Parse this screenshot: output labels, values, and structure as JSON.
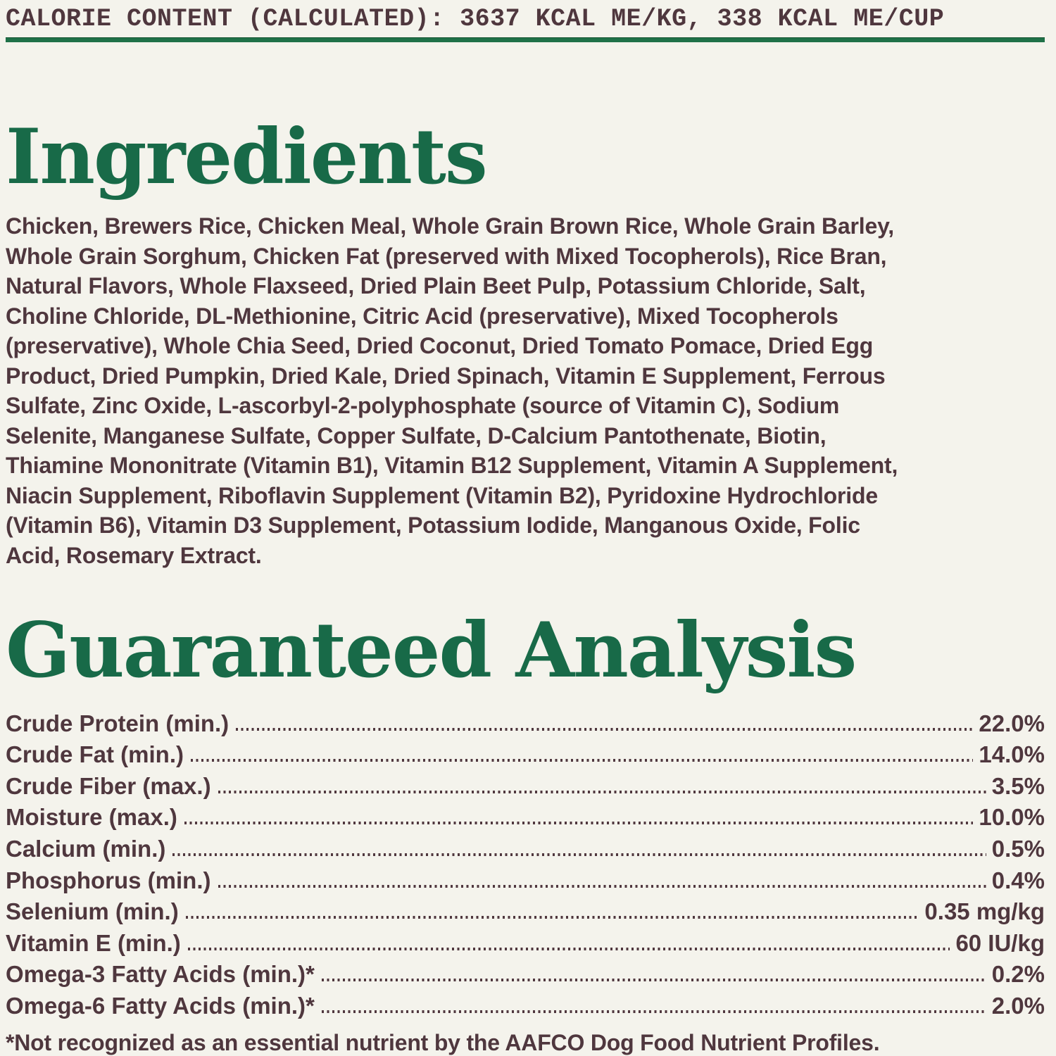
{
  "header": {
    "calorie_line": "CALORIE CONTENT (CALCULATED): 3637 KCAL ME/KG, 338 KCAL ME/CUP"
  },
  "colors": {
    "background": "#f4f3ec",
    "heading_green": "#186a48",
    "rule_green": "#1f7148",
    "text_brown": "#4f373e"
  },
  "ingredients": {
    "heading": "Ingredients",
    "lines": [
      "Chicken, Brewers Rice, Chicken Meal, Whole Grain Brown Rice, Whole Grain Barley,",
      "Whole Grain Sorghum, Chicken Fat (preserved with Mixed Tocopherols), Rice Bran,",
      "Natural Flavors, Whole Flaxseed, Dried Plain Beet Pulp, Potassium Chloride, Salt,",
      "Choline Chloride, DL-Methionine, Citric Acid (preservative), Mixed Tocopherols",
      "(preservative), Whole Chia Seed, Dried Coconut, Dried Tomato Pomace, Dried Egg",
      "Product, Dried Pumpkin, Dried Kale, Dried Spinach, Vitamin E Supplement, Ferrous",
      "Sulfate, Zinc Oxide, L-ascorbyl-2-polyphosphate (source of Vitamin C), Sodium",
      "Selenite, Manganese Sulfate, Copper Sulfate, D-Calcium Pantothenate, Biotin,",
      "Thiamine Mononitrate (Vitamin B1), Vitamin B12 Supplement, Vitamin A Supplement,",
      "Niacin Supplement, Riboflavin Supplement (Vitamin B2), Pyridoxine Hydrochloride",
      "(Vitamin B6), Vitamin D3 Supplement, Potassium Iodide, Manganous Oxide, Folic",
      "Acid, Rosemary Extract."
    ]
  },
  "analysis": {
    "heading": "Guaranteed Analysis",
    "rows": [
      {
        "label": "Crude Protein (min.)",
        "value": "22.0%"
      },
      {
        "label": "Crude Fat (min.)",
        "value": "14.0%"
      },
      {
        "label": "Crude Fiber (max.)",
        "value": "3.5%"
      },
      {
        "label": "Moisture (max.)",
        "value": "10.0%"
      },
      {
        "label": "Calcium (min.)",
        "value": "0.5%"
      },
      {
        "label": "Phosphorus (min.)",
        "value": "0.4%"
      },
      {
        "label": "Selenium (min.)",
        "value": "0.35 mg/kg"
      },
      {
        "label": "Vitamin E (min.)",
        "value": "60 IU/kg"
      },
      {
        "label": "Omega-3 Fatty Acids (min.)*",
        "value": "0.2%"
      },
      {
        "label": "Omega-6 Fatty Acids (min.)*",
        "value": "2.0%"
      }
    ],
    "footnote": "*Not recognized as an essential nutrient by the AAFCO Dog Food Nutrient Profiles."
  }
}
